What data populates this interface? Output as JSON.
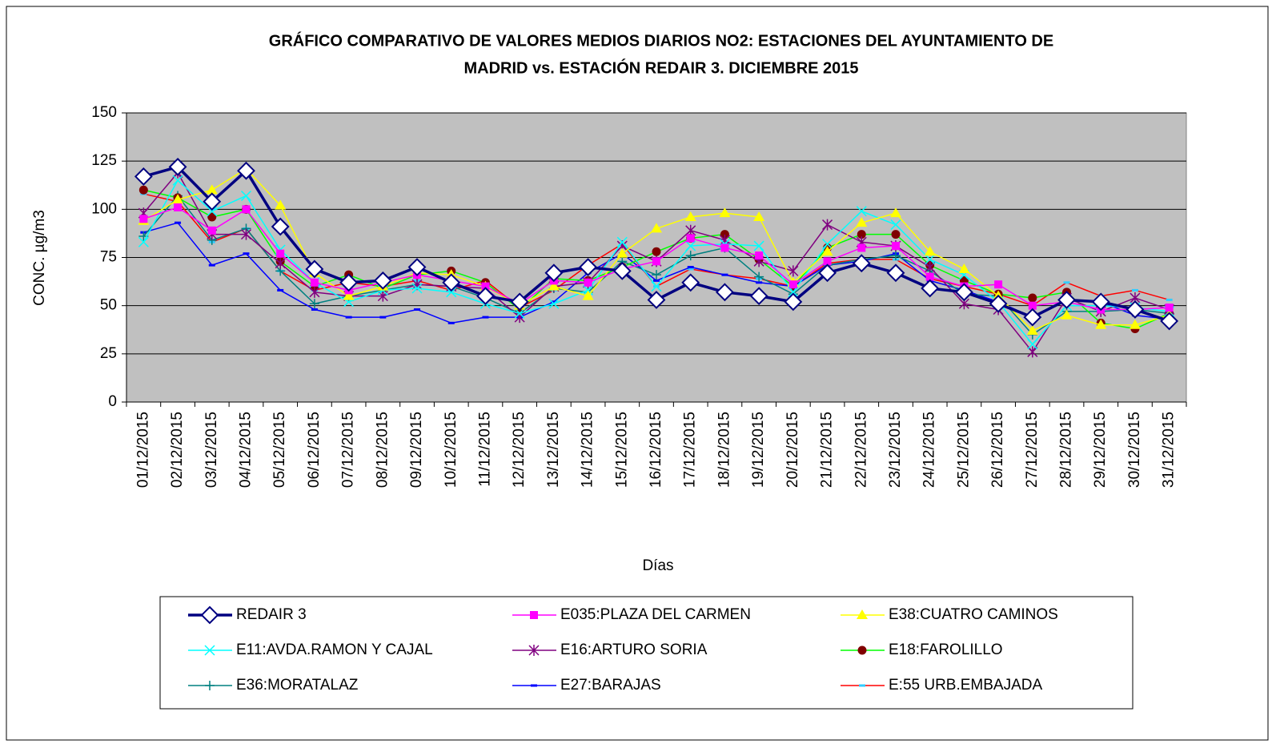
{
  "chart_data": {
    "type": "line",
    "title": [
      "GRÁFICO COMPARATIVO DE VALORES MEDIOS DIARIOS NO2: ESTACIONES DEL AYUNTAMIENTO DE",
      "MADRID vs.  ESTACIÓN REDAIR 3. DICIEMBRE 2015"
    ],
    "y_label": "CONC.   µg/m3",
    "x_label": "Días",
    "categories": [
      "01/12/2015",
      "02/12/2015",
      "03/12/2015",
      "04/12/2015",
      "05/12/2015",
      "06/12/2015",
      "07/12/2015",
      "08/12/2015",
      "09/12/2015",
      "10/12/2015",
      "11/12/2015",
      "12/12/2015",
      "13/12/2015",
      "14/12/2015",
      "15/12/2015",
      "16/12/2015",
      "17/12/2015",
      "18/12/2015",
      "19/12/2015",
      "20/12/2015",
      "21/12/2015",
      "22/12/2015",
      "23/12/2015",
      "24/12/2015",
      "25/12/2015",
      "26/12/2015",
      "27/12/2015",
      "28/12/2015",
      "29/12/2015",
      "30/12/2015",
      "31/12/2015"
    ],
    "ylim": [
      0,
      150
    ],
    "yticks": [
      0,
      25,
      50,
      75,
      100,
      125,
      150
    ],
    "grid": true,
    "background": "#c0c0c0",
    "series": [
      {
        "name": "REDAIR 3",
        "color": "#000080",
        "marker": "diamond",
        "marker_color": "#ffffff",
        "width": 3.5,
        "values": [
          117,
          122,
          104,
          120,
          91,
          69,
          62,
          63,
          70,
          62,
          55,
          52,
          67,
          70,
          68,
          53,
          62,
          57,
          55,
          52,
          67,
          72,
          67,
          59,
          57,
          51,
          44,
          53,
          52,
          48,
          42
        ]
      },
      {
        "name": "E035:PLAZA DEL CARMEN",
        "color": "#ff00ff",
        "marker": "square",
        "marker_color": "#ff00ff",
        "width": 1.5,
        "values": [
          95,
          101,
          89,
          100,
          77,
          62,
          58,
          62,
          66,
          63,
          60,
          51,
          63,
          62,
          69,
          73,
          85,
          80,
          76,
          61,
          73,
          80,
          81,
          65,
          60,
          61,
          50,
          52,
          48,
          48,
          49
        ]
      },
      {
        "name": "E38:CUATRO CAMINOS",
        "color": "#ffff00",
        "marker": "triangle",
        "marker_color": "#ffff00",
        "width": 1.5,
        "values": [
          94,
          105,
          110,
          121,
          102,
          67,
          55,
          60,
          67,
          66,
          60,
          50,
          60,
          55,
          77,
          90,
          96,
          98,
          96,
          62,
          78,
          93,
          98,
          78,
          69,
          55,
          37,
          45,
          40,
          40,
          45
        ]
      },
      {
        "name": "E11:AVDA.RAMON Y CAJAL",
        "color": "#00ffff",
        "marker": "x",
        "marker_color": "#00ffff",
        "width": 1.5,
        "values": [
          83,
          115,
          99,
          107,
          79,
          62,
          52,
          58,
          59,
          57,
          51,
          46,
          51,
          58,
          83,
          60,
          81,
          82,
          81,
          57,
          82,
          99,
          92,
          74,
          66,
          52,
          30,
          50,
          50,
          49,
          47
        ]
      },
      {
        "name": "E16:ARTURO SORIA",
        "color": "#800080",
        "marker": "star",
        "marker_color": "#800080",
        "width": 1.5,
        "values": [
          98,
          119,
          87,
          87,
          72,
          57,
          55,
          55,
          61,
          60,
          59,
          44,
          60,
          62,
          81,
          73,
          89,
          84,
          73,
          68,
          92,
          83,
          81,
          70,
          51,
          48,
          26,
          54,
          47,
          54,
          48
        ]
      },
      {
        "name": "E18:FAROLILLO",
        "color": "#00ff00",
        "marker": "circle",
        "marker_color": "#800000",
        "width": 1.5,
        "values": [
          110,
          106,
          96,
          100,
          73,
          60,
          66,
          59,
          66,
          68,
          62,
          48,
          64,
          63,
          70,
          78,
          85,
          87,
          74,
          60,
          80,
          87,
          87,
          71,
          63,
          56,
          54,
          57,
          41,
          38,
          46
        ]
      },
      {
        "name": "E36:MORATALAZ",
        "color": "#008080",
        "marker": "plus",
        "marker_color": "#008080",
        "width": 1.5,
        "values": [
          86,
          107,
          84,
          90,
          68,
          51,
          55,
          58,
          61,
          60,
          54,
          46,
          59,
          57,
          73,
          66,
          76,
          80,
          65,
          56,
          71,
          74,
          76,
          68,
          56,
          55,
          35,
          47,
          47,
          48,
          46
        ]
      },
      {
        "name": "E27:BARAJAS",
        "color": "#0000ff",
        "marker": "dash",
        "marker_color": "#0000ff",
        "width": 1.5,
        "values": [
          88,
          93,
          71,
          77,
          58,
          48,
          44,
          44,
          48,
          41,
          44,
          44,
          52,
          67,
          77,
          63,
          70,
          66,
          62,
          60,
          71,
          73,
          77,
          63,
          58,
          52,
          44,
          53,
          52,
          45,
          43
        ]
      },
      {
        "name": "E:55 URB.EMBAJADA",
        "color": "#ff0000",
        "marker": "dash",
        "marker_color": "#33ccff",
        "width": 1.5,
        "values": [
          108,
          104,
          83,
          90,
          68,
          58,
          62,
          60,
          63,
          58,
          63,
          49,
          58,
          71,
          82,
          60,
          69,
          66,
          64,
          60,
          72,
          74,
          74,
          64,
          60,
          56,
          50,
          62,
          55,
          58,
          53
        ]
      }
    ]
  }
}
